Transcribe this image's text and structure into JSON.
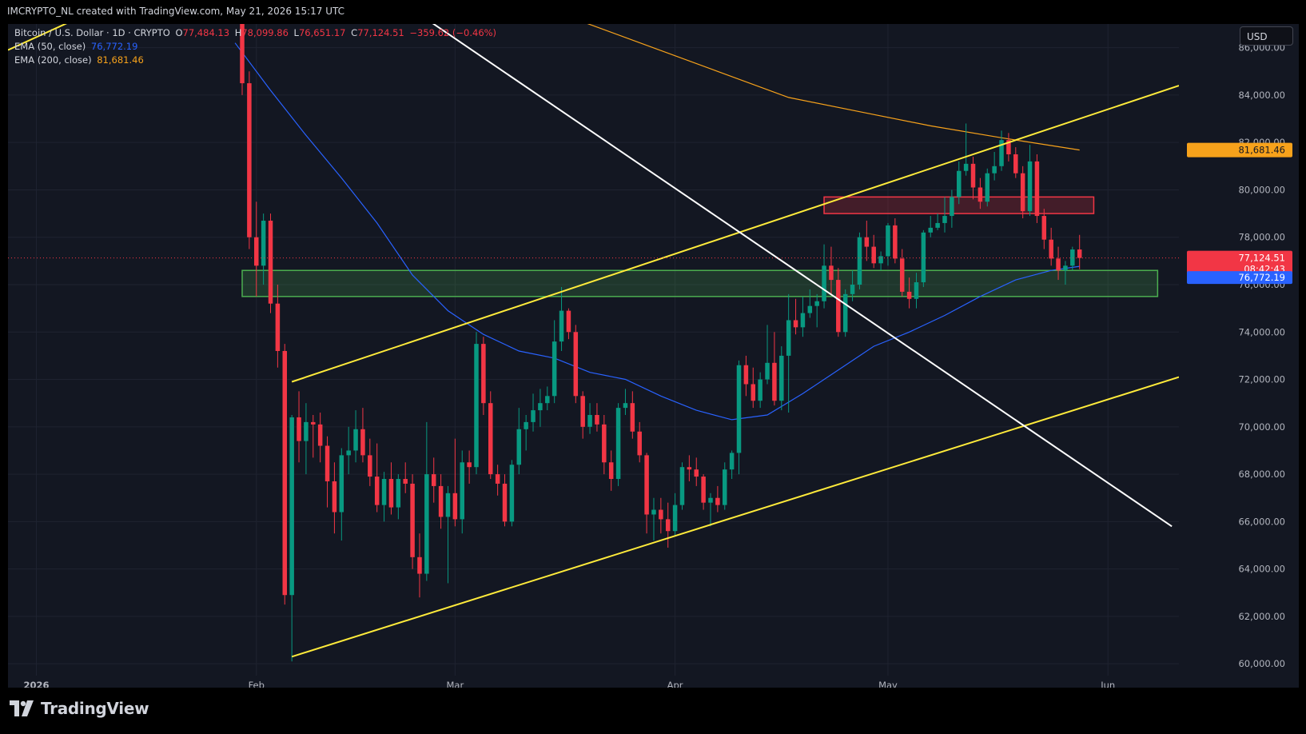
{
  "attribution": "IMCRYPTO_NL created with TradingView.com, May 21, 2026 15:17 UTC",
  "brand": "TradingView",
  "currency_button": "USD",
  "legend": {
    "symbol": "Bitcoin / U.S. Dollar · 1D · CRYPTO",
    "open_label": "O",
    "open": "77,484.13",
    "high_label": "H",
    "high": "78,099.86",
    "low_label": "L",
    "low": "76,651.17",
    "close_label": "C",
    "close": "77,124.51",
    "change": "−359.62 (−0.46%)",
    "ema50_label": "EMA (50, close)",
    "ema50_value": "76,772.19",
    "ema200_label": "EMA (200, close)",
    "ema200_value": "81,681.46"
  },
  "colors": {
    "background": "#131722",
    "up": "#089981",
    "down": "#f23645",
    "ema50": "#2962ff",
    "ema200": "#f7a21b",
    "channel": "#ffeb3b",
    "trendline": "#ffffff",
    "support_zone": "#4caf50",
    "resistance_zone": "#f23645",
    "text": "#b2b5be"
  },
  "chart_data": {
    "type": "candlestick",
    "y_ticks": [
      "86,000.00",
      "84,000.00",
      "82,000.00",
      "80,000.00",
      "78,000.00",
      "76,000.00",
      "74,000.00",
      "72,000.00",
      "70,000.00",
      "68,000.00",
      "66,000.00",
      "64,000.00",
      "62,000.00",
      "60,000.00"
    ],
    "ylim": [
      59500,
      87000
    ],
    "x_labels": [
      "2026",
      "Feb",
      "Mar",
      "Apr",
      "May",
      "Jun"
    ],
    "x_label_dates": [
      "2026-01-01",
      "2026-02-01",
      "2026-03-01",
      "2026-04-01",
      "2026-05-01",
      "2026-06-01"
    ],
    "x_range": [
      "2025-12-28",
      "2026-06-11"
    ],
    "price_badges": {
      "ema200": "81,681.46",
      "last": "77,124.51",
      "countdown": "08:42:43",
      "ema50": "76,772.19"
    },
    "last_price": 77124.51,
    "candles": [
      [
        "2026-01-30",
        88900,
        89300,
        84000,
        84500
      ],
      [
        "2026-01-31",
        84500,
        85000,
        77500,
        78000
      ],
      [
        "2026-02-01",
        78000,
        79500,
        75500,
        76800
      ],
      [
        "2026-02-02",
        76800,
        79000,
        76000,
        78700
      ],
      [
        "2026-02-03",
        78700,
        79000,
        74800,
        75200
      ],
      [
        "2026-02-04",
        75200,
        76000,
        72500,
        73200
      ],
      [
        "2026-02-05",
        73200,
        73500,
        62500,
        62900
      ],
      [
        "2026-02-06",
        62900,
        70500,
        60100,
        70400
      ],
      [
        "2026-02-07",
        70400,
        71500,
        68500,
        69400
      ],
      [
        "2026-02-08",
        69400,
        71000,
        68000,
        70200
      ],
      [
        "2026-02-09",
        70200,
        70500,
        68700,
        70100
      ],
      [
        "2026-02-10",
        70100,
        70600,
        68500,
        69200
      ],
      [
        "2026-02-11",
        69200,
        69600,
        66600,
        67700
      ],
      [
        "2026-02-12",
        67700,
        68500,
        65500,
        66400
      ],
      [
        "2026-02-13",
        66400,
        69100,
        65200,
        68800
      ],
      [
        "2026-02-14",
        68800,
        70000,
        68000,
        69000
      ],
      [
        "2026-02-15",
        69000,
        70700,
        68500,
        69900
      ],
      [
        "2026-02-16",
        69900,
        70800,
        68500,
        68800
      ],
      [
        "2026-02-17",
        68800,
        69500,
        67500,
        67900
      ],
      [
        "2026-02-18",
        67900,
        69300,
        66400,
        66700
      ],
      [
        "2026-02-19",
        66700,
        68100,
        66000,
        67800
      ],
      [
        "2026-02-20",
        67800,
        68500,
        66300,
        66600
      ],
      [
        "2026-02-21",
        66600,
        68000,
        66100,
        67800
      ],
      [
        "2026-02-22",
        67800,
        68500,
        67200,
        67600
      ],
      [
        "2026-02-23",
        67600,
        68000,
        64000,
        64500
      ],
      [
        "2026-02-24",
        64500,
        65500,
        62800,
        63800
      ],
      [
        "2026-02-25",
        63800,
        70200,
        63500,
        68000
      ],
      [
        "2026-02-26",
        68000,
        68700,
        66800,
        67500
      ],
      [
        "2026-02-27",
        67500,
        68000,
        65700,
        66200
      ],
      [
        "2026-02-28",
        66200,
        67500,
        63400,
        67200
      ],
      [
        "2026-03-01",
        67200,
        69500,
        65800,
        66100
      ],
      [
        "2026-03-02",
        66100,
        69000,
        65500,
        68500
      ],
      [
        "2026-03-03",
        68500,
        69000,
        67600,
        68300
      ],
      [
        "2026-03-04",
        68300,
        74000,
        68000,
        73500
      ],
      [
        "2026-03-05",
        73500,
        73800,
        70500,
        71000
      ],
      [
        "2026-03-06",
        71000,
        71500,
        67800,
        68000
      ],
      [
        "2026-03-07",
        68000,
        68400,
        67100,
        67600
      ],
      [
        "2026-03-08",
        67600,
        68000,
        65800,
        66000
      ],
      [
        "2026-03-09",
        66000,
        68600,
        65800,
        68400
      ],
      [
        "2026-03-10",
        68400,
        70800,
        68000,
        69900
      ],
      [
        "2026-03-11",
        69900,
        70500,
        69000,
        70200
      ],
      [
        "2026-03-12",
        70200,
        71400,
        69800,
        70700
      ],
      [
        "2026-03-13",
        70700,
        71600,
        70000,
        71000
      ],
      [
        "2026-03-14",
        71000,
        71700,
        70700,
        71300
      ],
      [
        "2026-03-15",
        71300,
        74500,
        71000,
        73600
      ],
      [
        "2026-03-16",
        73600,
        75900,
        73200,
        74900
      ],
      [
        "2026-03-17",
        74900,
        75000,
        73700,
        74000
      ],
      [
        "2026-03-18",
        74000,
        74300,
        71000,
        71300
      ],
      [
        "2026-03-19",
        71300,
        71500,
        69500,
        70000
      ],
      [
        "2026-03-20",
        70000,
        71000,
        69700,
        70500
      ],
      [
        "2026-03-21",
        70500,
        71000,
        69800,
        70100
      ],
      [
        "2026-03-22",
        70100,
        70500,
        68000,
        68500
      ],
      [
        "2026-03-23",
        68500,
        69000,
        67300,
        67800
      ],
      [
        "2026-03-24",
        67800,
        71000,
        67500,
        70800
      ],
      [
        "2026-03-25",
        70800,
        71600,
        70500,
        71000
      ],
      [
        "2026-03-26",
        71000,
        71500,
        69500,
        69800
      ],
      [
        "2026-03-27",
        69800,
        70200,
        68500,
        68800
      ],
      [
        "2026-03-28",
        68800,
        68900,
        65500,
        66300
      ],
      [
        "2026-03-29",
        66300,
        67000,
        65200,
        66500
      ],
      [
        "2026-03-30",
        66500,
        67000,
        65500,
        66100
      ],
      [
        "2026-03-31",
        66100,
        66800,
        64900,
        65600
      ],
      [
        "2026-04-01",
        65600,
        67200,
        65400,
        66700
      ],
      [
        "2026-04-02",
        66700,
        68500,
        66500,
        68300
      ],
      [
        "2026-04-03",
        68300,
        68800,
        67700,
        68200
      ],
      [
        "2026-04-04",
        68200,
        68700,
        67500,
        67900
      ],
      [
        "2026-04-05",
        67900,
        68000,
        66500,
        66800
      ],
      [
        "2026-04-06",
        66800,
        67200,
        65800,
        67000
      ],
      [
        "2026-04-07",
        67000,
        67500,
        66400,
        66700
      ],
      [
        "2026-04-08",
        66700,
        68500,
        66500,
        68200
      ],
      [
        "2026-04-09",
        68200,
        69000,
        67800,
        68900
      ],
      [
        "2026-04-10",
        68900,
        72800,
        68000,
        72600
      ],
      [
        "2026-04-11",
        72600,
        73000,
        71300,
        71800
      ],
      [
        "2026-04-12",
        71800,
        72500,
        70800,
        71100
      ],
      [
        "2026-04-13",
        71100,
        72300,
        70800,
        72000
      ],
      [
        "2026-04-14",
        72000,
        74300,
        71800,
        72700
      ],
      [
        "2026-04-15",
        72700,
        74000,
        70900,
        71100
      ],
      [
        "2026-04-16",
        71100,
        73400,
        70700,
        73000
      ],
      [
        "2026-04-17",
        73000,
        75600,
        70600,
        74500
      ],
      [
        "2026-04-18",
        74500,
        75400,
        73900,
        74200
      ],
      [
        "2026-04-19",
        74200,
        75500,
        73800,
        74800
      ],
      [
        "2026-04-20",
        74800,
        75800,
        74600,
        75100
      ],
      [
        "2026-04-21",
        75100,
        75600,
        74200,
        75300
      ],
      [
        "2026-04-22",
        75300,
        77700,
        75000,
        76800
      ],
      [
        "2026-04-23",
        76800,
        77600,
        75600,
        76200
      ],
      [
        "2026-04-24",
        76200,
        76700,
        73800,
        74000
      ],
      [
        "2026-04-25",
        74000,
        75800,
        73800,
        75600
      ],
      [
        "2026-04-26",
        75600,
        76600,
        75300,
        76000
      ],
      [
        "2026-04-27",
        76000,
        78200,
        75800,
        78000
      ],
      [
        "2026-04-28",
        78000,
        78700,
        77000,
        77600
      ],
      [
        "2026-04-29",
        77600,
        78100,
        76700,
        76900
      ],
      [
        "2026-04-30",
        76900,
        77400,
        76600,
        77200
      ],
      [
        "2026-05-01",
        77200,
        78600,
        76800,
        78500
      ],
      [
        "2026-05-02",
        78500,
        78800,
        76900,
        77100
      ],
      [
        "2026-05-03",
        77100,
        77500,
        75500,
        75700
      ],
      [
        "2026-05-04",
        75700,
        76300,
        75000,
        75400
      ],
      [
        "2026-05-05",
        75400,
        76500,
        75000,
        76100
      ],
      [
        "2026-05-06",
        76100,
        78300,
        75900,
        78200
      ],
      [
        "2026-05-07",
        78200,
        78900,
        78000,
        78400
      ],
      [
        "2026-05-08",
        78400,
        79000,
        78300,
        78600
      ],
      [
        "2026-05-09",
        78600,
        79700,
        78200,
        78900
      ],
      [
        "2026-05-10",
        78900,
        80000,
        78400,
        79700
      ],
      [
        "2026-05-11",
        79700,
        81200,
        79400,
        80800
      ],
      [
        "2026-05-12",
        80800,
        82800,
        80600,
        81100
      ],
      [
        "2026-05-13",
        81100,
        81400,
        79600,
        80100
      ],
      [
        "2026-05-14",
        80100,
        80500,
        79200,
        79500
      ],
      [
        "2026-05-15",
        79500,
        80900,
        79300,
        80700
      ],
      [
        "2026-05-16",
        80700,
        81600,
        80400,
        81000
      ],
      [
        "2026-05-17",
        81000,
        82500,
        80800,
        82100
      ],
      [
        "2026-05-18",
        82100,
        82400,
        81200,
        81500
      ],
      [
        "2026-05-19",
        81500,
        81800,
        80500,
        80700
      ],
      [
        "2026-05-20",
        80700,
        81000,
        78800,
        79100
      ],
      [
        "2026-05-21",
        79100,
        81900,
        78900,
        81200
      ],
      [
        "2026-05-22",
        81200,
        81500,
        78600,
        78900
      ],
      [
        "2026-05-23",
        78900,
        79200,
        77500,
        77900
      ],
      [
        "2026-05-24",
        77900,
        78400,
        76800,
        77100
      ],
      [
        "2026-05-25",
        77100,
        77600,
        76200,
        76600
      ],
      [
        "2026-05-26",
        76600,
        77000,
        76000,
        76800
      ],
      [
        "2026-05-27",
        76800,
        77600,
        76600,
        77484
      ],
      [
        "2026-05-28",
        77484,
        78100,
        76651,
        77124.51
      ]
    ],
    "ema50": [
      [
        "2026-01-29",
        86200
      ],
      [
        "2026-02-03",
        84200
      ],
      [
        "2026-02-08",
        82300
      ],
      [
        "2026-02-13",
        80500
      ],
      [
        "2026-02-18",
        78600
      ],
      [
        "2026-02-23",
        76400
      ],
      [
        "2026-02-28",
        74900
      ],
      [
        "2026-03-05",
        73900
      ],
      [
        "2026-03-10",
        73200
      ],
      [
        "2026-03-15",
        72900
      ],
      [
        "2026-03-20",
        72300
      ],
      [
        "2026-03-25",
        72000
      ],
      [
        "2026-03-30",
        71300
      ],
      [
        "2026-04-04",
        70700
      ],
      [
        "2026-04-09",
        70300
      ],
      [
        "2026-04-14",
        70500
      ],
      [
        "2026-04-19",
        71400
      ],
      [
        "2026-04-24",
        72400
      ],
      [
        "2026-04-29",
        73400
      ],
      [
        "2026-05-04",
        74000
      ],
      [
        "2026-05-09",
        74700
      ],
      [
        "2026-05-14",
        75500
      ],
      [
        "2026-05-19",
        76200
      ],
      [
        "2026-05-24",
        76600
      ],
      [
        "2026-05-28",
        76772
      ]
    ],
    "ema200": [
      [
        "2026-03-08",
        88300
      ],
      [
        "2026-03-18",
        87200
      ],
      [
        "2026-03-28",
        86100
      ],
      [
        "2026-04-07",
        85000
      ],
      [
        "2026-04-17",
        83900
      ],
      [
        "2026-04-27",
        83300
      ],
      [
        "2026-05-07",
        82700
      ],
      [
        "2026-05-17",
        82200
      ],
      [
        "2026-05-28",
        81681
      ]
    ],
    "drawings": {
      "channel_upper": [
        [
          "2026-02-06",
          71900
        ],
        [
          "2026-06-11",
          84400
        ]
      ],
      "channel_lower": [
        [
          "2026-02-06",
          60300
        ],
        [
          "2026-06-11",
          72100
        ]
      ],
      "channel_top_left": [
        [
          "2025-12-28",
          85900
        ],
        [
          "2026-01-08",
          87400
        ]
      ],
      "descending_trendline": [
        [
          "2026-02-25",
          87200
        ],
        [
          "2026-06-10",
          65800
        ]
      ],
      "support_zone": {
        "from": "2026-01-30",
        "to": "2026-06-08",
        "low": 75500,
        "high": 76600
      },
      "resistance_zone": {
        "from": "2026-04-22",
        "to": "2026-05-30",
        "low": 79000,
        "high": 79700
      }
    }
  }
}
